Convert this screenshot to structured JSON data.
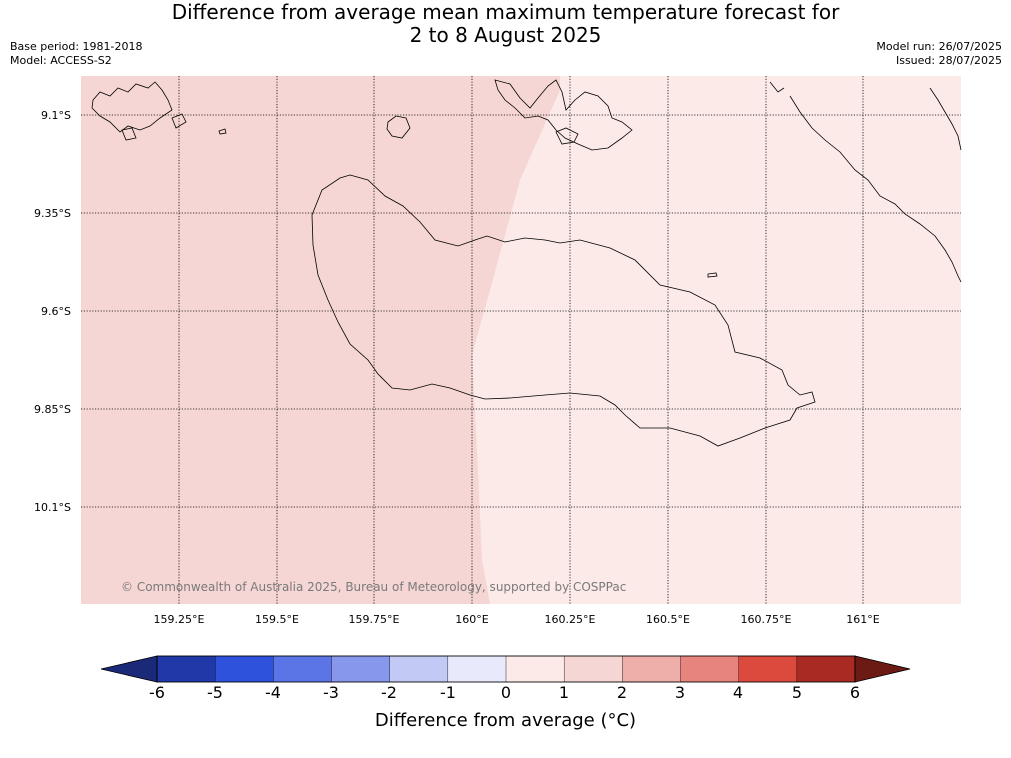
{
  "title": {
    "line1": "Difference from average mean maximum temperature forecast for",
    "line2": "2 to 8 August 2025"
  },
  "meta": {
    "base_period": "Base period: 1981-2018",
    "model": "Model: ACCESS-S2",
    "model_run": "Model run: 26/07/2025",
    "issued": "Issued: 28/07/2025"
  },
  "map": {
    "lat_labels": [
      "9.1°S",
      "9.35°S",
      "9.6°S",
      "9.85°S",
      "10.1°S"
    ],
    "lon_labels": [
      "159.25°E",
      "159.5°E",
      "159.75°E",
      "160°E",
      "160.25°E",
      "160.5°E",
      "160.75°E",
      "161°E"
    ],
    "copyright": "© Commonwealth of Australia 2025, Bureau of Meteorology, supported by COSPPac",
    "regions": [
      {
        "category": "1 to 2",
        "color": "#f5d6d4"
      },
      {
        "category": "0 to 1",
        "color": "#fbeae8"
      }
    ]
  },
  "colorbar": {
    "label": "Difference from average (°C)",
    "ticks": [
      "-6",
      "-5",
      "-4",
      "-3",
      "-2",
      "-1",
      "0",
      "1",
      "2",
      "3",
      "4",
      "5",
      "6"
    ],
    "under_color": "#1b2a78",
    "over_color": "#6b1a14",
    "colors": [
      "#2138a8",
      "#2f52dd",
      "#5b74e6",
      "#8798ec",
      "#c2c9f5",
      "#e8eafc",
      "#fbeae8",
      "#f5d6d4",
      "#eeaeaa",
      "#e6847d",
      "#dc4a3e",
      "#a82a22"
    ]
  }
}
